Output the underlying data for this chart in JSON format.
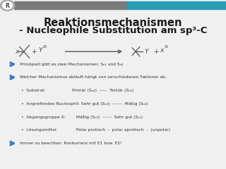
{
  "title_line1": "Reaktionsmechanismen",
  "title_line2": "- Nucleophile Substitution am sp³-C",
  "bg_color": "#f0f0f0",
  "header_bar_gray": "#7a7a7a",
  "header_bar_blue": "#2a9db5",
  "arrow_color": "#3a7fc1",
  "text_color": "#333333",
  "bullet_lines": [
    "Prinzipiell gibt es zwei Mechanismen: Sₙ₁ und Sₙ₂",
    "Welcher Mechanismus abläuft hängt von verschiedenen Faktoren ab:",
    "•  Substrat:                    Primär (Sₙ₂)  -----  Tertiär (Sₙ₁)",
    "•  Angreifendes Nucleophil: Sehr gut (Sₙ₂) -------  Mäßig (Sₙ₂)",
    "•  Abgangsgruppe X:        Mäßig (Sₙ₂)  ------  Sehr gut (Sₙ₁)",
    "•  Lösungsmittel               Polar protisch  -  polar aprotisch  -  (unpolar)",
    "Immer zu beachten: Konkurrenz mit E1 bzw. E2!"
  ],
  "has_arrow": [
    true,
    true,
    false,
    false,
    false,
    false,
    true
  ],
  "indent_lines": [
    false,
    false,
    true,
    true,
    true,
    true,
    false
  ]
}
